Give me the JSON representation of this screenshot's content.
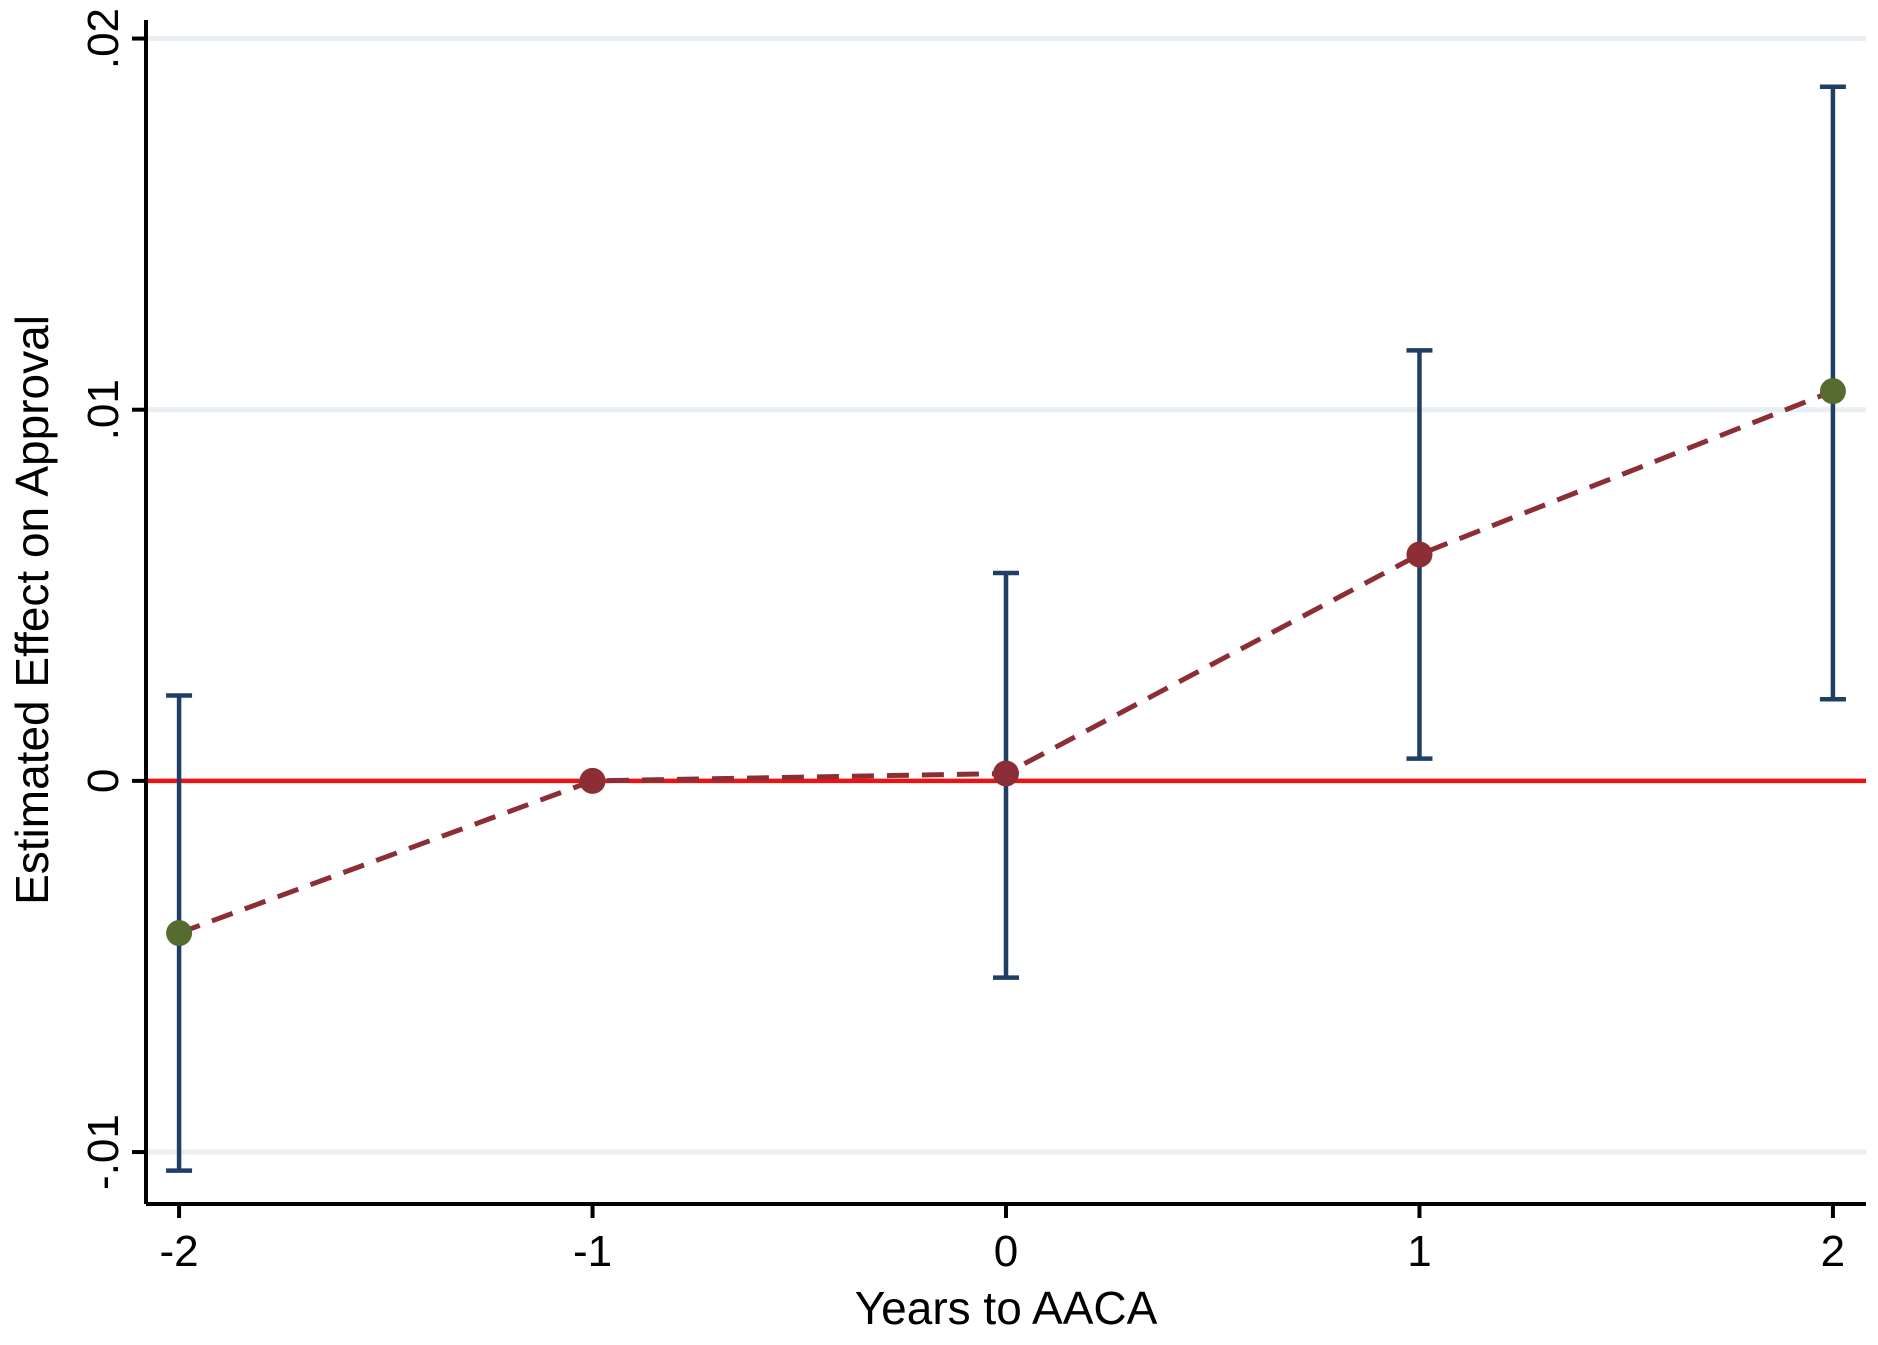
{
  "chart_data": {
    "type": "scatter",
    "xlabel": "Years to AACA",
    "ylabel": "Estimated Effect on Approval",
    "x_ticks": [
      "-2",
      "-1",
      "0",
      "1",
      "2"
    ],
    "y_ticks": [
      "-.01",
      "0",
      ".01",
      ".02"
    ],
    "xlim": [
      -2.08,
      2.08
    ],
    "ylim": [
      -0.0114,
      0.0205
    ],
    "grid": "horizontal",
    "points": [
      {
        "x": -2,
        "y": -0.0041,
        "ci_low": -0.0105,
        "ci_high": 0.0023,
        "color": "#556b2f"
      },
      {
        "x": -1,
        "y": 0.0,
        "ci_low": null,
        "ci_high": null,
        "color": "#8b2e35"
      },
      {
        "x": 0,
        "y": 0.0002,
        "ci_low": -0.0053,
        "ci_high": 0.0056,
        "color": "#8b2e35"
      },
      {
        "x": 1,
        "y": 0.0061,
        "ci_low": 0.0006,
        "ci_high": 0.0116,
        "color": "#8b2e35"
      },
      {
        "x": 2,
        "y": 0.0105,
        "ci_low": 0.0022,
        "ci_high": 0.0187,
        "color": "#556b2f"
      }
    ],
    "reference_line": {
      "y": 0,
      "color": "#ee1111"
    },
    "connector_color": "#8b2e35",
    "ci_color": "#1f3f66",
    "grid_color": "#e8eef2"
  }
}
